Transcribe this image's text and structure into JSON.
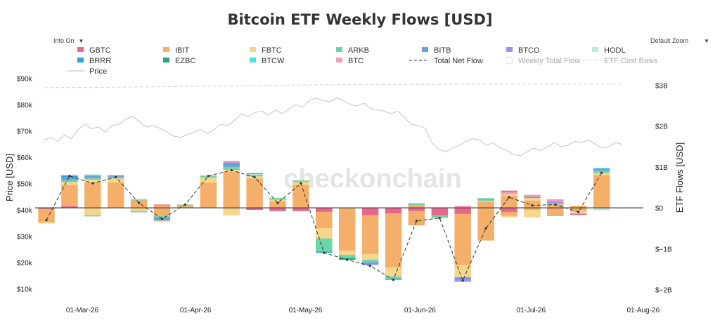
{
  "controls": {
    "info_label": "Info On",
    "zoom_label": "Default Zoom"
  },
  "chart_data": {
    "type": "bar",
    "title": "Bitcoin ETF Weekly Flows [USD]",
    "watermark": "checkonchain",
    "ylabel_left": "Price [USD]",
    "ylabel_right": "ETF Flows [USD]",
    "ylim_left": [
      5000,
      92000
    ],
    "ylim_right": [
      -2.3,
      3.3
    ],
    "left_ticks": [
      "$10k",
      "$20k",
      "$30k",
      "$40k",
      "$50k",
      "$60k",
      "$70k",
      "$80k",
      "$90k"
    ],
    "left_tick_values": [
      10000,
      20000,
      30000,
      40000,
      50000,
      60000,
      70000,
      80000,
      90000
    ],
    "right_ticks": [
      "$−2B",
      "$−1B",
      "$0",
      "$1B",
      "$2B",
      "$3B"
    ],
    "right_tick_values": [
      -2,
      -1,
      0,
      1,
      2,
      3
    ],
    "x_ticks": [
      "01-Mar-26",
      "01-Apr-26",
      "01-May-26",
      "01-Jun-26",
      "01-Jul-26",
      "01-Aug-26"
    ],
    "x_tick_weeks": [
      1.55,
      6.45,
      11.2,
      16.15,
      20.95,
      25.8
    ],
    "legend": [
      {
        "name": "GBTC",
        "color": "#e8668c",
        "kind": "box"
      },
      {
        "name": "IBIT",
        "color": "#f4b06a",
        "kind": "box"
      },
      {
        "name": "FBTC",
        "color": "#f7d58c",
        "kind": "box"
      },
      {
        "name": "ARKB",
        "color": "#6dd6a8",
        "kind": "box"
      },
      {
        "name": "BITB",
        "color": "#6b9fe0",
        "kind": "box"
      },
      {
        "name": "BTCO",
        "color": "#a18ff0",
        "kind": "box"
      },
      {
        "name": "HODL",
        "color": "#bfe8d6",
        "kind": "box"
      },
      {
        "name": "BRRR",
        "color": "#29a5d8",
        "kind": "box"
      },
      {
        "name": "EZBC",
        "color": "#1fa877",
        "kind": "box"
      },
      {
        "name": "BTCW",
        "color": "#3de8e0",
        "kind": "box"
      },
      {
        "name": "BTC",
        "color": "#f29cb5",
        "kind": "box"
      },
      {
        "name": "Total Net Flow",
        "color": "#333333",
        "kind": "dash"
      },
      {
        "name": "Weekly Total Flow",
        "color": "#d0e4e4",
        "kind": "circle"
      },
      {
        "name": "ETF Cost Basis",
        "color": "#cccccc",
        "kind": "dashlight"
      },
      {
        "name": "Price",
        "color": "#bbbbbb",
        "kind": "line"
      }
    ],
    "weeks": [
      {
        "pos": [],
        "neg": [
          [
            "GBTC",
            0.03
          ],
          [
            "IBIT",
            0.32
          ],
          [
            "FBTC",
            0.03
          ]
        ]
      },
      {
        "pos": [
          [
            "GBTC",
            0.04
          ],
          [
            "IBIT",
            0.52
          ],
          [
            "FBTC",
            0.07
          ],
          [
            "ARKB",
            0.05
          ],
          [
            "BITB",
            0.07
          ],
          [
            "BRRR",
            0.03
          ],
          [
            "BTC",
            0.03
          ]
        ],
        "neg": []
      },
      {
        "pos": [
          [
            "IBIT",
            0.62
          ],
          [
            "FBTC",
            0.07
          ],
          [
            "ARKB",
            0.04
          ],
          [
            "BITB",
            0.05
          ],
          [
            "BTCO",
            0.02
          ],
          [
            "HODL",
            0.02
          ]
        ],
        "neg": [
          [
            "FBTC",
            0.18
          ],
          [
            "ARKB",
            0.03
          ]
        ]
      },
      {
        "pos": [
          [
            "IBIT",
            0.62
          ],
          [
            "FBTC",
            0.1
          ],
          [
            "ARKB",
            0.04
          ],
          [
            "BITB",
            0.02
          ],
          [
            "GBTC",
            0.02
          ]
        ],
        "neg": []
      },
      {
        "pos": [
          [
            "IBIT",
            0.18
          ],
          [
            "ARKB",
            0.02
          ],
          [
            "FBTC",
            0.02
          ]
        ],
        "neg": [
          [
            "FBTC",
            0.08
          ],
          [
            "ARKB",
            0.03
          ]
        ]
      },
      {
        "pos": [
          [
            "IBIT",
            0.06
          ],
          [
            "GBTC",
            0.02
          ]
        ],
        "neg": [
          [
            "IBIT",
            0.2
          ],
          [
            "ARKB",
            0.04
          ],
          [
            "BITB",
            0.07
          ],
          [
            "FBTC",
            0.03
          ]
        ]
      },
      {
        "pos": [
          [
            "IBIT",
            0.05
          ],
          [
            "ARKB",
            0.03
          ]
        ],
        "neg": []
      },
      {
        "pos": [
          [
            "IBIT",
            0.62
          ],
          [
            "FBTC",
            0.12
          ],
          [
            "ARKB",
            0.04
          ],
          [
            "HODL",
            0.03
          ]
        ],
        "neg": []
      },
      {
        "pos": [
          [
            "IBIT",
            0.88
          ],
          [
            "FBTC",
            0.05
          ],
          [
            "ARKB",
            0.07
          ],
          [
            "BITB",
            0.06
          ],
          [
            "EZBC",
            0.02
          ],
          [
            "BTCO",
            0.03
          ],
          [
            "BTC",
            0.04
          ]
        ],
        "neg": [
          [
            "FBTC",
            0.18
          ]
        ]
      },
      {
        "pos": [
          [
            "IBIT",
            0.72
          ],
          [
            "FBTC",
            0.05
          ],
          [
            "ARKB",
            0.04
          ],
          [
            "HODL",
            0.02
          ],
          [
            "EZBC",
            0.02
          ]
        ],
        "neg": [
          [
            "GBTC",
            0.05
          ]
        ]
      },
      {
        "pos": [
          [
            "IBIT",
            0.16
          ],
          [
            "FBTC",
            0.04
          ],
          [
            "ARKB",
            0.04
          ]
        ],
        "neg": [
          [
            "GBTC",
            0.08
          ]
        ]
      },
      {
        "pos": [
          [
            "IBIT",
            0.56
          ],
          [
            "FBTC",
            0.07
          ],
          [
            "ARKB",
            0.04
          ]
        ],
        "neg": [
          [
            "GBTC",
            0.08
          ]
        ]
      },
      {
        "pos": [],
        "neg": [
          [
            "GBTC",
            0.1
          ],
          [
            "IBIT",
            0.4
          ],
          [
            "FBTC",
            0.25
          ],
          [
            "ARKB",
            0.32
          ],
          [
            "BRRR",
            0.03
          ]
        ]
      },
      {
        "pos": [],
        "neg": [
          [
            "IBIT",
            1.05
          ],
          [
            "FBTC",
            0.1
          ],
          [
            "ARKB",
            0.08
          ],
          [
            "EZBC",
            0.04
          ]
        ]
      },
      {
        "pos": [],
        "neg": [
          [
            "GBTC",
            0.18
          ],
          [
            "IBIT",
            0.95
          ],
          [
            "FBTC",
            0.14
          ],
          [
            "ARKB",
            0.06
          ],
          [
            "BITB",
            0.05
          ],
          [
            "BTCO",
            0.02
          ]
        ]
      },
      {
        "pos": [],
        "neg": [
          [
            "GBTC",
            0.14
          ],
          [
            "IBIT",
            1.32
          ],
          [
            "FBTC",
            0.22
          ],
          [
            "ARKB",
            0.05
          ],
          [
            "BRRR",
            0.03
          ]
        ]
      },
      {
        "pos": [
          [
            "IBIT",
            0.06
          ],
          [
            "ARKB",
            0.03
          ],
          [
            "BITB",
            0.02
          ]
        ],
        "neg": [
          [
            "GBTC",
            0.08
          ],
          [
            "IBIT",
            0.35
          ]
        ]
      },
      {
        "pos": [],
        "neg": [
          [
            "GBTC",
            0.18
          ],
          [
            "ARKB",
            0.05
          ],
          [
            "IBIT",
            0.02
          ]
        ]
      },
      {
        "pos": [
          [
            "BTC",
            0.05
          ]
        ],
        "neg": [
          [
            "GBTC",
            0.15
          ],
          [
            "IBIT",
            1.25
          ],
          [
            "FBTC",
            0.3
          ],
          [
            "BITB",
            0.06
          ],
          [
            "BTCO",
            0.05
          ]
        ]
      },
      {
        "pos": [
          [
            "IBIT",
            0.15
          ],
          [
            "FBTC",
            0.02
          ],
          [
            "ARKB",
            0.04
          ],
          [
            "EZBC",
            0.02
          ]
        ],
        "neg": [
          [
            "IBIT",
            0.8
          ]
        ]
      },
      {
        "pos": [
          [
            "IBIT",
            0.3
          ],
          [
            "FBTC",
            0.04
          ],
          [
            "BTC",
            0.05
          ],
          [
            "GBTC",
            0.03
          ]
        ],
        "neg": [
          [
            "GBTC",
            0.1
          ],
          [
            "IBIT",
            0.1
          ],
          [
            "FBTC",
            0.03
          ]
        ]
      },
      {
        "pos": [
          [
            "IBIT",
            0.18
          ],
          [
            "FBTC",
            0.06
          ],
          [
            "BITB",
            0.03
          ],
          [
            "BTC",
            0.05
          ]
        ],
        "neg": [
          [
            "IBIT",
            0.05
          ],
          [
            "FBTC",
            0.18
          ]
        ]
      },
      {
        "pos": [
          [
            "IBIT",
            0.08
          ],
          [
            "ARKB",
            0.04
          ],
          [
            "BTCO",
            0.03
          ],
          [
            "BTC",
            0.06
          ]
        ],
        "neg": [
          [
            "GBTC",
            0.02
          ],
          [
            "IBIT",
            0.15
          ],
          [
            "ARKB",
            0.03
          ]
        ]
      },
      {
        "pos": [
          [
            "IBIT",
            0.05
          ]
        ],
        "neg": [
          [
            "IBIT",
            0.08
          ],
          [
            "FBTC",
            0.05
          ],
          [
            "ARKB",
            0.02
          ],
          [
            "GBTC",
            0.02
          ]
        ]
      },
      {
        "pos": [
          [
            "IBIT",
            0.8
          ],
          [
            "FBTC",
            0.05
          ],
          [
            "ARKB",
            0.06
          ],
          [
            "BITB",
            0.04
          ],
          [
            "BRRR",
            0.02
          ]
        ],
        "neg": [
          [
            "HODL",
            0.06
          ]
        ]
      }
    ],
    "net_flow": [
      -0.3,
      0.78,
      0.6,
      0.75,
      0.12,
      -0.27,
      0.08,
      0.78,
      0.92,
      0.75,
      0.12,
      0.6,
      -1.1,
      -1.27,
      -1.42,
      -1.76,
      -0.32,
      -0.25,
      -1.78,
      -0.5,
      0.26,
      0.06,
      0.08,
      -0.1,
      0.86
    ],
    "price_series": {
      "start_week": -0.1,
      "end_week": 24.9,
      "values": [
        66500,
        67500,
        66000,
        68500,
        67000,
        70500,
        72500,
        70800,
        71500,
        69500,
        72000,
        72500,
        74500,
        75500,
        73500,
        71500,
        72000,
        71000,
        69800,
        68000,
        67500,
        68500,
        69500,
        70500,
        69000,
        70500,
        72500,
        72000,
        74000,
        76500,
        75500,
        77000,
        77500,
        76000,
        78000,
        76500,
        78500,
        80000,
        79000,
        81500,
        82500,
        81500,
        81000,
        82500,
        81500,
        80000,
        79500,
        80500,
        78500,
        78000,
        77500,
        76500,
        77500,
        75000,
        72500,
        72000,
        71000,
        65500,
        63000,
        62000,
        63500,
        64500,
        66000,
        67000,
        66500,
        64500,
        65500,
        63500,
        62500,
        61000,
        60500,
        62000,
        63500,
        62500,
        64000,
        65500,
        64000,
        64500,
        66000,
        65500,
        66500,
        65000,
        63500,
        64000,
        65500,
        64800
      ]
    },
    "cost_basis": {
      "start_week": -0.1,
      "end_week": 24.9,
      "values": [
        86400,
        86500,
        86500,
        86600,
        86700,
        86800,
        86900,
        87000,
        87100,
        87200,
        87300,
        87400,
        87500,
        87550,
        87600,
        87650,
        87700,
        87700,
        87750,
        87750,
        87800,
        87800,
        87800,
        87800,
        87800,
        87800
      ]
    }
  }
}
